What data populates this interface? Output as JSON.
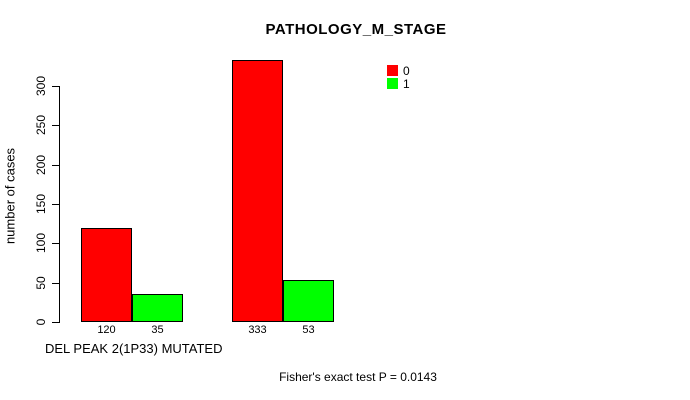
{
  "chart_data": {
    "type": "bar",
    "title": "PATHOLOGY_M_STAGE",
    "ylabel": "number of cases",
    "xlabel": "DEL PEAK 2(1P33) MUTATED",
    "ylim": [
      0,
      300
    ],
    "yticks": [
      0,
      50,
      100,
      150,
      200,
      250,
      300
    ],
    "grid": false,
    "legend_position": "top-right",
    "background_color": "#FFFFFF",
    "axis_color": "#000000",
    "groups": [
      {
        "bars": [
          {
            "series": "0",
            "value": 120,
            "count_label": "120",
            "color": "#FF0000"
          },
          {
            "series": "1",
            "value": 35,
            "count_label": "35",
            "color": "#00FF00"
          }
        ]
      },
      {
        "bars": [
          {
            "series": "0",
            "value": 333,
            "count_label": "333",
            "color": "#FF0000"
          },
          {
            "series": "1",
            "value": 53,
            "count_label": "53",
            "color": "#00FF00"
          }
        ]
      }
    ],
    "legend": [
      {
        "label": "0",
        "color": "#FF0000"
      },
      {
        "label": "1",
        "color": "#00FF00"
      }
    ],
    "annotation": "Fisher's exact test P = 0.0143"
  }
}
